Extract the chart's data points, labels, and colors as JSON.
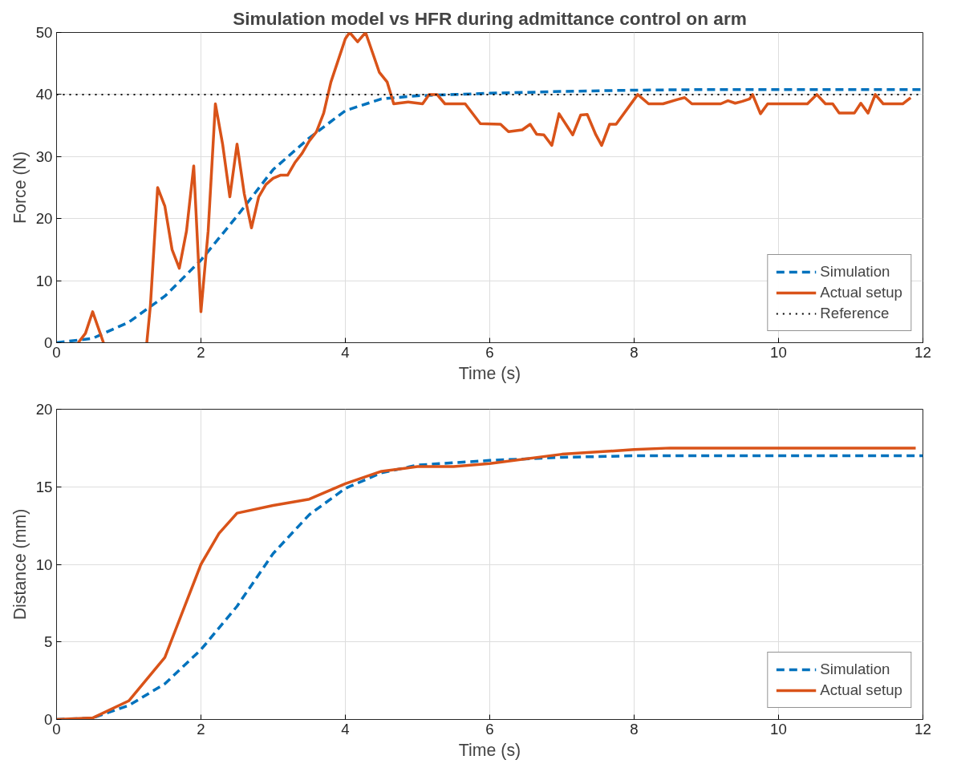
{
  "chart_data": [
    {
      "type": "line",
      "title": "Simulation model vs HFR during admittance control on arm",
      "xlabel": "Time (s)",
      "ylabel": "Force (N)",
      "xlim": [
        0,
        12
      ],
      "xticks": [
        0,
        2,
        4,
        6,
        8,
        10,
        12
      ],
      "ylim": [
        0,
        50
      ],
      "yticks": [
        0,
        10,
        20,
        30,
        40,
        50
      ],
      "grid": true,
      "legend": "bottom right",
      "series": [
        {
          "name": "Simulation",
          "color": "#0072bd",
          "line_style": "dashed",
          "x": [
            0,
            0.5,
            1,
            1.5,
            2,
            2.5,
            3,
            3.5,
            4,
            4.5,
            5,
            6,
            7,
            8,
            9,
            10,
            11,
            12
          ],
          "values": [
            0,
            0.7,
            3.3,
            7.5,
            13.3,
            20.4,
            27.9,
            33,
            37.4,
            39.3,
            39.8,
            40.2,
            40.5,
            40.7,
            40.8,
            40.8,
            40.8,
            40.8
          ]
        },
        {
          "name": "Actual setup",
          "color": "#d95319",
          "line_style": "solid",
          "x": [
            0.3,
            0.4,
            0.5,
            0.65,
            0.9,
            1.25,
            1.3,
            1.4,
            1.5,
            1.6,
            1.7,
            1.8,
            1.9,
            2.0,
            2.1,
            2.2,
            2.3,
            2.4,
            2.5,
            2.6,
            2.7,
            2.8,
            2.9,
            3.0,
            3.1,
            3.2,
            3.3,
            3.4,
            3.5,
            3.6,
            3.7,
            3.8,
            3.9,
            4.0,
            4.06,
            4.17,
            4.28,
            4.47,
            4.58,
            4.67,
            4.87,
            5.07,
            5.16,
            5.27,
            5.38,
            5.66,
            5.87,
            6.15,
            6.26,
            6.45,
            6.56,
            6.65,
            6.75,
            6.86,
            6.96,
            7.15,
            7.26,
            7.35,
            7.47,
            7.55,
            7.66,
            7.75,
            8.05,
            8.2,
            8.4,
            8.6,
            8.7,
            8.8,
            9.0,
            9.2,
            9.3,
            9.4,
            9.5,
            9.6,
            9.64,
            9.75,
            9.85,
            10.0,
            10.2,
            10.4,
            10.53,
            10.65,
            10.75,
            10.84,
            11.05,
            11.14,
            11.24,
            11.34,
            11.45,
            11.72,
            11.83
          ],
          "values": [
            0,
            1.5,
            5,
            0,
            null,
            0,
            6,
            25,
            22,
            15,
            12,
            18,
            28.5,
            5,
            18,
            38.5,
            32,
            23.5,
            32,
            24,
            18.5,
            23.5,
            25.5,
            26.5,
            27,
            27,
            29,
            30.5,
            32.5,
            34,
            37,
            42,
            45.5,
            49,
            50,
            48.5,
            50,
            43.6,
            42,
            38.5,
            38.8,
            38.5,
            40,
            40,
            38.5,
            38.5,
            35.3,
            35.2,
            34,
            34.3,
            35.2,
            33.6,
            33.5,
            31.8,
            36.9,
            33.5,
            36.7,
            36.8,
            33.5,
            31.8,
            35.2,
            35.2,
            40,
            38.5,
            38.5,
            39.2,
            39.5,
            38.5,
            38.5,
            38.5,
            39,
            38.6,
            38.9,
            39.3,
            40,
            36.9,
            38.5,
            38.5,
            38.5,
            38.5,
            40,
            38.5,
            38.5,
            37,
            37,
            38.6,
            37,
            40,
            38.5,
            38.5,
            39.5
          ]
        },
        {
          "name": "Reference",
          "color": "#000000",
          "line_style": "dotted",
          "x": [
            0,
            12
          ],
          "values": [
            40,
            40
          ]
        }
      ]
    },
    {
      "type": "line",
      "xlabel": "Time (s)",
      "ylabel": "Distance (mm)",
      "xlim": [
        0,
        12
      ],
      "xticks": [
        0,
        2,
        4,
        6,
        8,
        10,
        12
      ],
      "ylim": [
        0,
        20
      ],
      "yticks": [
        0,
        5,
        10,
        15,
        20
      ],
      "grid": true,
      "legend": "bottom right",
      "series": [
        {
          "name": "Simulation",
          "color": "#0072bd",
          "line_style": "dashed",
          "x": [
            0,
            0.5,
            1,
            1.5,
            2,
            2.5,
            3,
            3.5,
            4,
            4.5,
            5,
            6,
            7,
            8,
            10,
            12
          ],
          "values": [
            0,
            0.1,
            0.9,
            2.3,
            4.5,
            7.3,
            10.7,
            13.2,
            14.9,
            15.9,
            16.4,
            16.7,
            16.9,
            17,
            17,
            17
          ]
        },
        {
          "name": "Actual setup",
          "color": "#d95319",
          "line_style": "solid",
          "x": [
            0,
            0.5,
            1,
            1.5,
            2,
            2.25,
            2.5,
            3,
            3.5,
            4,
            4.5,
            5,
            5.5,
            6,
            7,
            8,
            8.5,
            10,
            11.9
          ],
          "values": [
            0,
            0.1,
            1.2,
            4,
            10,
            12,
            13.3,
            13.8,
            14.2,
            15.2,
            16,
            16.3,
            16.3,
            16.5,
            17.1,
            17.4,
            17.5,
            17.5,
            17.5
          ]
        }
      ]
    }
  ]
}
